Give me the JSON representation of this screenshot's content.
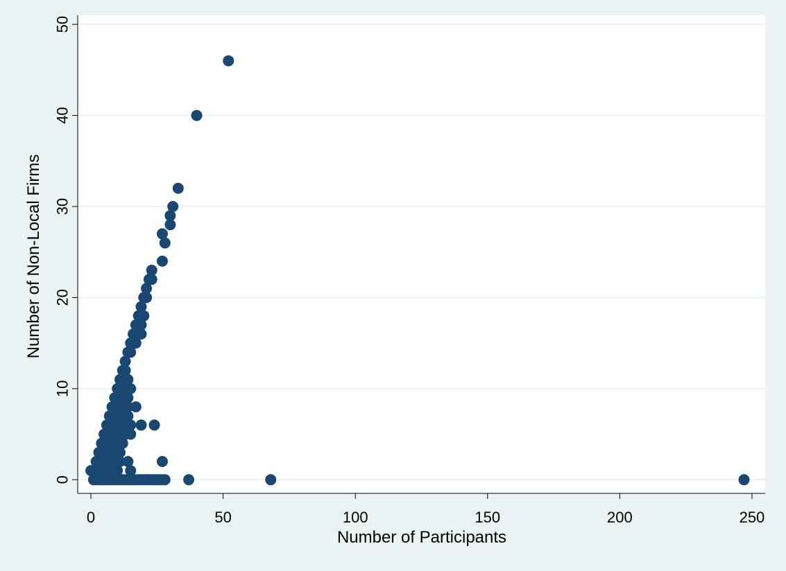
{
  "chart_data": {
    "type": "scatter",
    "title": "",
    "xlabel": "Number of Participants",
    "ylabel": "Number of Non-Local Firms",
    "xlim": [
      -5,
      255
    ],
    "ylim": [
      -1.5,
      51
    ],
    "xticks": [
      0,
      50,
      100,
      150,
      200,
      250
    ],
    "yticks": [
      0,
      10,
      20,
      30,
      40,
      50
    ],
    "grid": true,
    "legend": "none",
    "colors": {
      "background": "#eaf2f3",
      "plot_area": "#ffffff",
      "gridline": "#eaf2f3",
      "marker": "#1a476f",
      "axis": "#000000"
    },
    "points": [
      {
        "x": 0,
        "y": 1
      },
      {
        "x": 1,
        "y": 0
      },
      {
        "x": 1,
        "y": 1
      },
      {
        "x": 2,
        "y": 0
      },
      {
        "x": 2,
        "y": 1
      },
      {
        "x": 2,
        "y": 2
      },
      {
        "x": 3,
        "y": 0
      },
      {
        "x": 3,
        "y": 1
      },
      {
        "x": 3,
        "y": 2
      },
      {
        "x": 3,
        "y": 3
      },
      {
        "x": 4,
        "y": 0
      },
      {
        "x": 4,
        "y": 1
      },
      {
        "x": 4,
        "y": 2
      },
      {
        "x": 4,
        "y": 3
      },
      {
        "x": 4,
        "y": 4
      },
      {
        "x": 5,
        "y": 0
      },
      {
        "x": 5,
        "y": 1
      },
      {
        "x": 5,
        "y": 2
      },
      {
        "x": 5,
        "y": 3
      },
      {
        "x": 5,
        "y": 4
      },
      {
        "x": 5,
        "y": 5
      },
      {
        "x": 6,
        "y": 0
      },
      {
        "x": 6,
        "y": 1
      },
      {
        "x": 6,
        "y": 2
      },
      {
        "x": 6,
        "y": 3
      },
      {
        "x": 6,
        "y": 4
      },
      {
        "x": 6,
        "y": 5
      },
      {
        "x": 6,
        "y": 6
      },
      {
        "x": 7,
        "y": 0
      },
      {
        "x": 7,
        "y": 1
      },
      {
        "x": 7,
        "y": 2
      },
      {
        "x": 7,
        "y": 3
      },
      {
        "x": 7,
        "y": 4
      },
      {
        "x": 7,
        "y": 5
      },
      {
        "x": 7,
        "y": 6
      },
      {
        "x": 7,
        "y": 7
      },
      {
        "x": 8,
        "y": 0
      },
      {
        "x": 8,
        "y": 1
      },
      {
        "x": 8,
        "y": 2
      },
      {
        "x": 8,
        "y": 3
      },
      {
        "x": 8,
        "y": 4
      },
      {
        "x": 8,
        "y": 5
      },
      {
        "x": 8,
        "y": 6
      },
      {
        "x": 8,
        "y": 7
      },
      {
        "x": 8,
        "y": 8
      },
      {
        "x": 9,
        "y": 0
      },
      {
        "x": 9,
        "y": 1
      },
      {
        "x": 9,
        "y": 2
      },
      {
        "x": 9,
        "y": 3
      },
      {
        "x": 9,
        "y": 4
      },
      {
        "x": 9,
        "y": 5
      },
      {
        "x": 9,
        "y": 6
      },
      {
        "x": 9,
        "y": 7
      },
      {
        "x": 9,
        "y": 8
      },
      {
        "x": 9,
        "y": 9
      },
      {
        "x": 10,
        "y": 0
      },
      {
        "x": 10,
        "y": 1
      },
      {
        "x": 10,
        "y": 2
      },
      {
        "x": 10,
        "y": 3
      },
      {
        "x": 10,
        "y": 4
      },
      {
        "x": 10,
        "y": 5
      },
      {
        "x": 10,
        "y": 6
      },
      {
        "x": 10,
        "y": 7
      },
      {
        "x": 10,
        "y": 8
      },
      {
        "x": 10,
        "y": 9
      },
      {
        "x": 10,
        "y": 10
      },
      {
        "x": 11,
        "y": 0
      },
      {
        "x": 11,
        "y": 2
      },
      {
        "x": 11,
        "y": 3
      },
      {
        "x": 11,
        "y": 4
      },
      {
        "x": 11,
        "y": 5
      },
      {
        "x": 11,
        "y": 6
      },
      {
        "x": 11,
        "y": 7
      },
      {
        "x": 11,
        "y": 8
      },
      {
        "x": 11,
        "y": 9
      },
      {
        "x": 11,
        "y": 10
      },
      {
        "x": 11,
        "y": 11
      },
      {
        "x": 12,
        "y": 0
      },
      {
        "x": 12,
        "y": 4
      },
      {
        "x": 12,
        "y": 5
      },
      {
        "x": 12,
        "y": 6
      },
      {
        "x": 12,
        "y": 7
      },
      {
        "x": 12,
        "y": 8
      },
      {
        "x": 12,
        "y": 9
      },
      {
        "x": 12,
        "y": 10
      },
      {
        "x": 12,
        "y": 11
      },
      {
        "x": 12,
        "y": 12
      },
      {
        "x": 13,
        "y": 0
      },
      {
        "x": 13,
        "y": 5
      },
      {
        "x": 13,
        "y": 6
      },
      {
        "x": 13,
        "y": 7
      },
      {
        "x": 13,
        "y": 8
      },
      {
        "x": 13,
        "y": 9
      },
      {
        "x": 13,
        "y": 10
      },
      {
        "x": 13,
        "y": 11
      },
      {
        "x": 13,
        "y": 12
      },
      {
        "x": 13,
        "y": 13
      },
      {
        "x": 14,
        "y": 0
      },
      {
        "x": 14,
        "y": 2
      },
      {
        "x": 14,
        "y": 6
      },
      {
        "x": 14,
        "y": 7
      },
      {
        "x": 14,
        "y": 8
      },
      {
        "x": 14,
        "y": 9
      },
      {
        "x": 14,
        "y": 10
      },
      {
        "x": 14,
        "y": 11
      },
      {
        "x": 14,
        "y": 14
      },
      {
        "x": 15,
        "y": 0
      },
      {
        "x": 15,
        "y": 1
      },
      {
        "x": 15,
        "y": 5
      },
      {
        "x": 15,
        "y": 6
      },
      {
        "x": 15,
        "y": 10
      },
      {
        "x": 15,
        "y": 14
      },
      {
        "x": 15,
        "y": 15
      },
      {
        "x": 16,
        "y": 0
      },
      {
        "x": 16,
        "y": 15
      },
      {
        "x": 16,
        "y": 16
      },
      {
        "x": 17,
        "y": 0
      },
      {
        "x": 17,
        "y": 8
      },
      {
        "x": 17,
        "y": 15
      },
      {
        "x": 17,
        "y": 16
      },
      {
        "x": 17,
        "y": 17
      },
      {
        "x": 18,
        "y": 0
      },
      {
        "x": 18,
        "y": 16
      },
      {
        "x": 18,
        "y": 17
      },
      {
        "x": 18,
        "y": 18
      },
      {
        "x": 19,
        "y": 0
      },
      {
        "x": 19,
        "y": 6
      },
      {
        "x": 19,
        "y": 16
      },
      {
        "x": 19,
        "y": 17
      },
      {
        "x": 19,
        "y": 18
      },
      {
        "x": 19,
        "y": 19
      },
      {
        "x": 20,
        "y": 0
      },
      {
        "x": 20,
        "y": 18
      },
      {
        "x": 20,
        "y": 20
      },
      {
        "x": 21,
        "y": 0
      },
      {
        "x": 21,
        "y": 20
      },
      {
        "x": 21,
        "y": 21
      },
      {
        "x": 22,
        "y": 0
      },
      {
        "x": 22,
        "y": 22
      },
      {
        "x": 23,
        "y": 0
      },
      {
        "x": 23,
        "y": 22
      },
      {
        "x": 23,
        "y": 23
      },
      {
        "x": 24,
        "y": 0
      },
      {
        "x": 24,
        "y": 6
      },
      {
        "x": 25,
        "y": 0
      },
      {
        "x": 26,
        "y": 0
      },
      {
        "x": 27,
        "y": 0
      },
      {
        "x": 27,
        "y": 2
      },
      {
        "x": 27,
        "y": 24
      },
      {
        "x": 27,
        "y": 27
      },
      {
        "x": 28,
        "y": 0
      },
      {
        "x": 28,
        "y": 26
      },
      {
        "x": 30,
        "y": 28
      },
      {
        "x": 30,
        "y": 29
      },
      {
        "x": 31,
        "y": 30
      },
      {
        "x": 33,
        "y": 32
      },
      {
        "x": 37,
        "y": 0
      },
      {
        "x": 40,
        "y": 40
      },
      {
        "x": 52,
        "y": 46
      },
      {
        "x": 68,
        "y": 0
      },
      {
        "x": 247,
        "y": 0
      }
    ]
  }
}
